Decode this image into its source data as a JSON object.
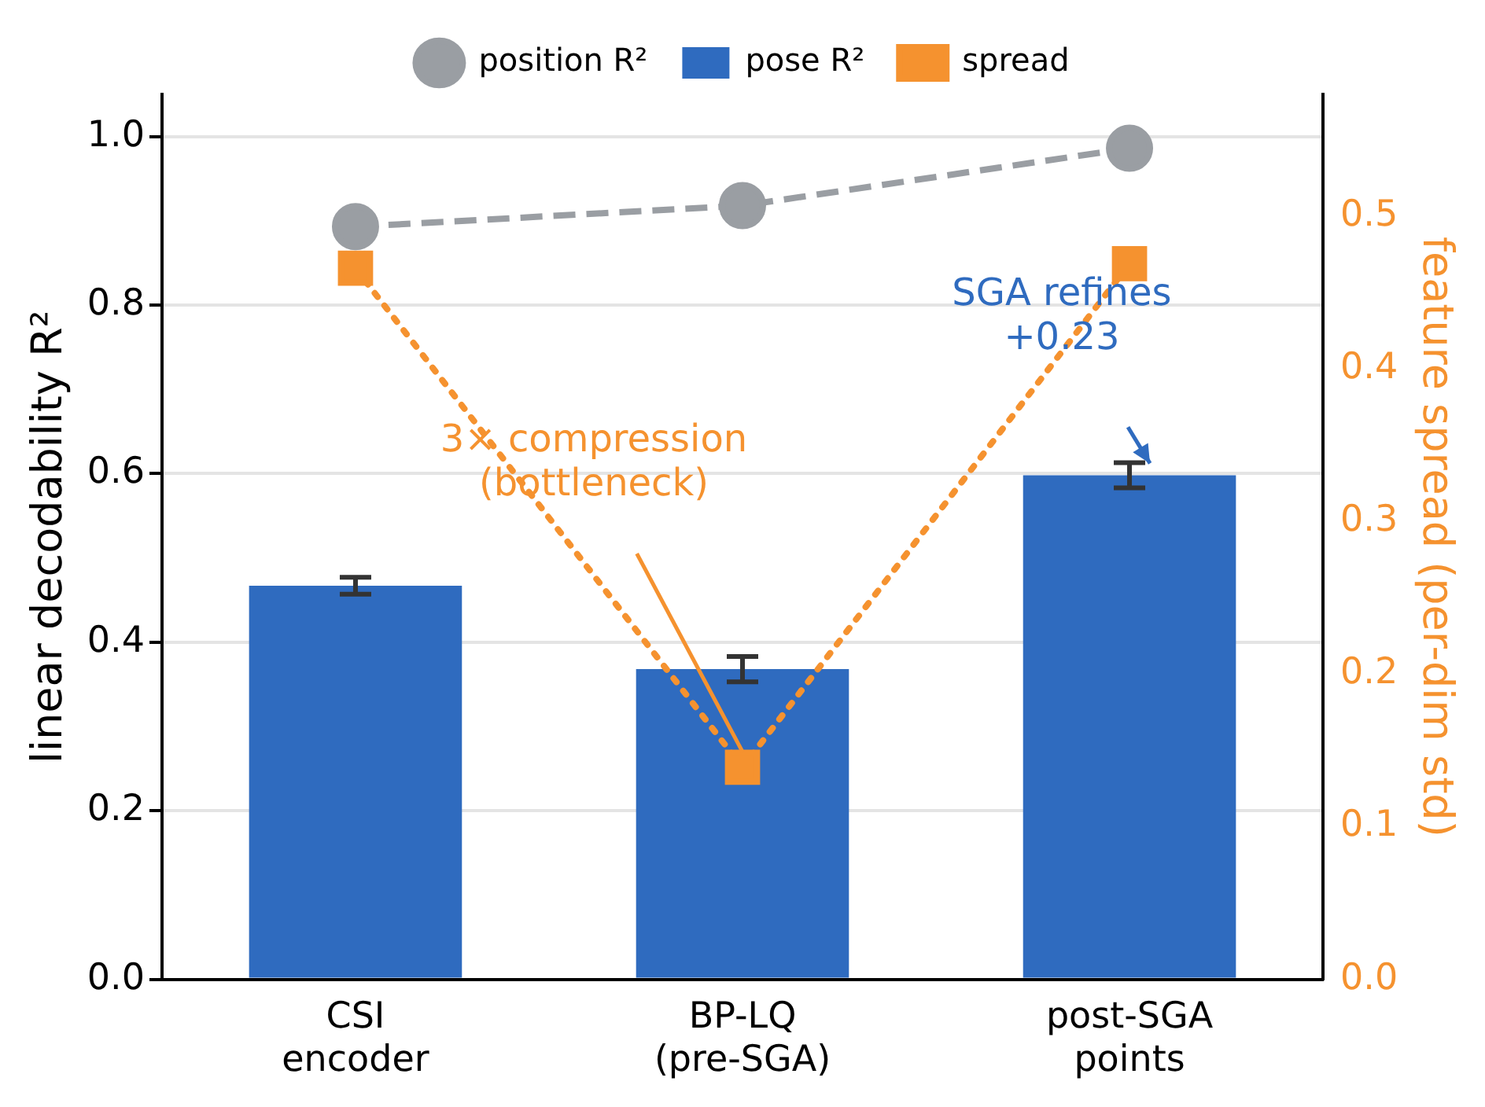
{
  "chart_data": {
    "type": "bar",
    "categories": [
      "CSI\nencoder",
      "BP-LQ\n(pre-SGA)",
      "post-SGA\npoints"
    ],
    "ylabel": "linear decodability R²",
    "y2label": "feature spread (per-dim std)",
    "series": [
      {
        "name": "position R²",
        "type": "line",
        "color": "#9a9ea3",
        "values": [
          0.893,
          0.918,
          0.986
        ],
        "marker": "circle",
        "line_style": "dashed"
      },
      {
        "name": "pose R²",
        "color": "#2f6bbf",
        "values": [
          0.467,
          0.368,
          0.598
        ],
        "errors": [
          0.01,
          0.015,
          0.015
        ]
      },
      {
        "name": "spread",
        "type": "line",
        "axis": "y2",
        "color": "#f5922f",
        "values": [
          0.466,
          0.139,
          0.469
        ],
        "marker": "square",
        "line_style": "dotted"
      }
    ],
    "ylim": [
      0,
      1.05
    ],
    "yticks": [
      {
        "value": 0,
        "label": "0.0"
      },
      0.2,
      0.4,
      0.6,
      0.8,
      {
        "value": 1,
        "label": "1.0"
      }
    ],
    "y2lim": [
      0,
      0.58
    ],
    "y2ticks": [
      {
        "value": 0,
        "label": "0.0"
      },
      0.1,
      0.2,
      0.3,
      0.4,
      0.5
    ],
    "grid": "y",
    "legend": "top",
    "annotations": [
      {
        "text": "3× compression\n(bottleneck)",
        "x": "BP-LQ\n(pre-SGA)",
        "y": 0.27
      },
      "SGA refines\n+0.23"
    ]
  }
}
